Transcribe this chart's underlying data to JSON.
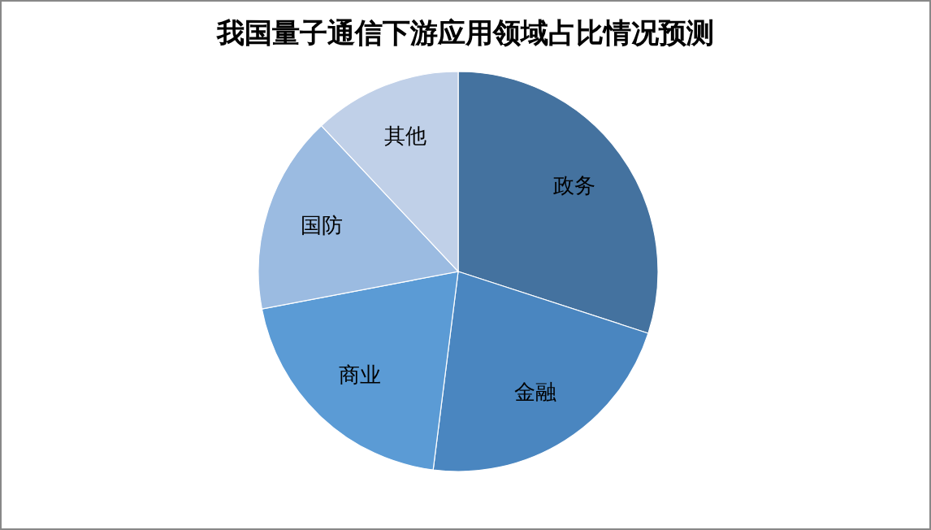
{
  "chart_data": {
    "type": "pie",
    "title": "我国量子通信下游应用领域占比情况预测",
    "categories": [
      "政务",
      "金融",
      "商业",
      "国防",
      "其他"
    ],
    "values": [
      30,
      22,
      20,
      16,
      12
    ],
    "colors": [
      "#44729f",
      "#4a86c0",
      "#5b9bd5",
      "#9bbbe1",
      "#c0d0e8"
    ]
  }
}
